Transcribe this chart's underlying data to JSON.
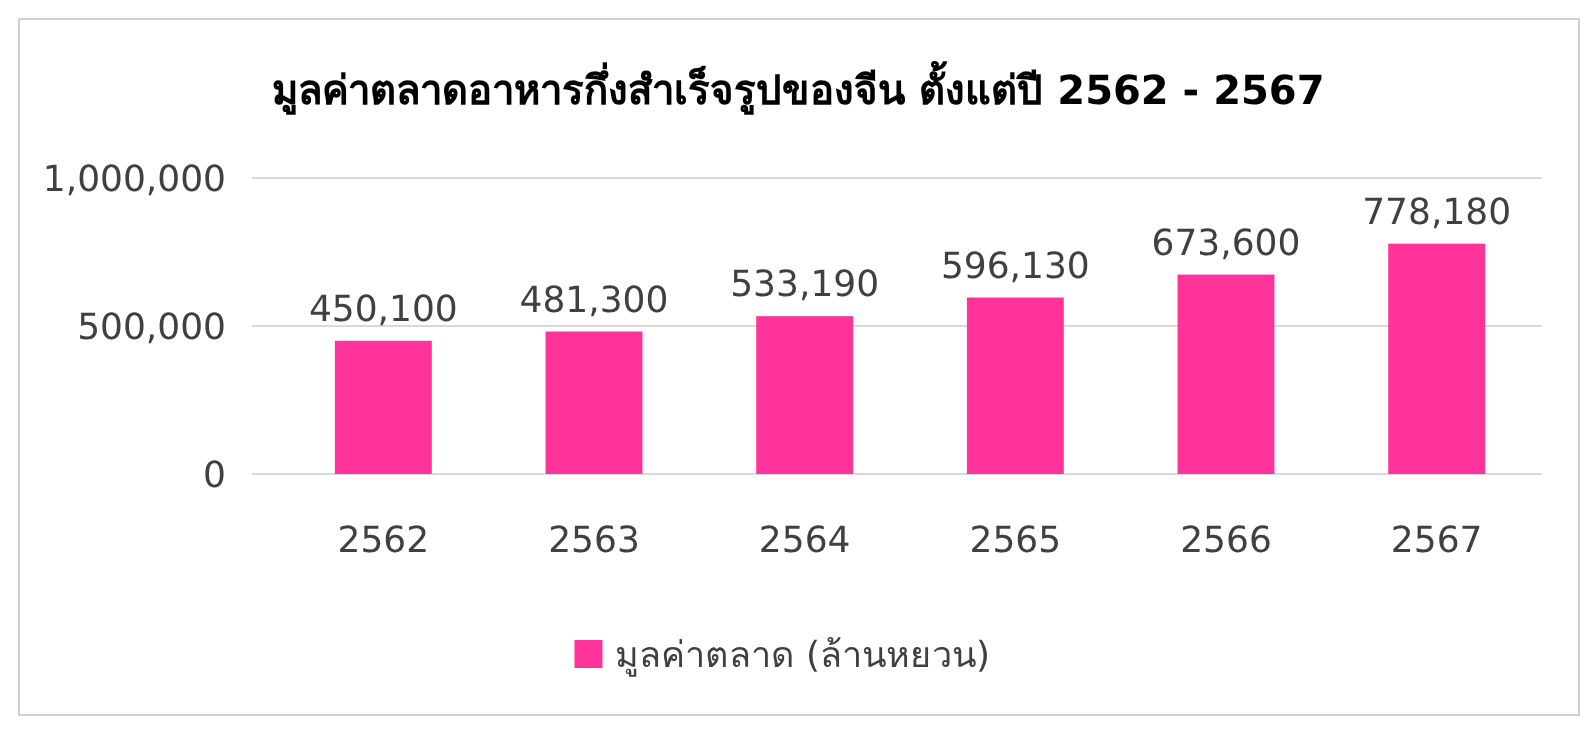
{
  "chart_data": {
    "type": "bar",
    "title": "มูลค่าตลาดอาหารกึ่งสำเร็จรูปของจีน ตั้งแต่ปี 2562 - 2567",
    "categories": [
      "2562",
      "2563",
      "2564",
      "2565",
      "2566",
      "2567"
    ],
    "series": [
      {
        "name": "มูลค่าตลาด (ล้านหยวน)",
        "color": "#ff3399",
        "values": [
          450100,
          481300,
          533190,
          596130,
          673600,
          778180
        ]
      }
    ],
    "value_labels": [
      "450,100",
      "481,300",
      "533,190",
      "596,130",
      "673,600",
      "778,180"
    ],
    "ylim": [
      0,
      1000000
    ],
    "yticks": [
      {
        "value": 0,
        "label": "0"
      },
      {
        "value": 500000,
        "label": "500,000"
      },
      {
        "value": 1000000,
        "label": "1,000,000"
      }
    ],
    "grid": "y",
    "legend": "bottom"
  }
}
